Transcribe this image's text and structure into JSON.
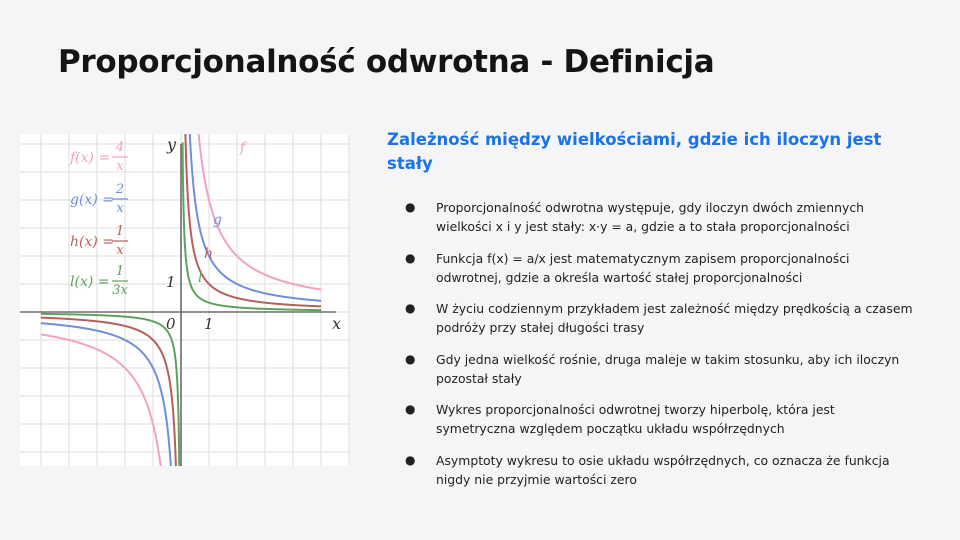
{
  "slide": {
    "title": "Proporcjonalność odwrotna - Definicja",
    "subtitle": "Zależność między wielkościami, gdzie ich iloczyn jest stały",
    "bullets": [
      "Proporcjonalność odwrotna występuje, gdy iloczyn dwóch zmiennych wielkości x i y jest stały: x·y = a, gdzie a to stała proporcjonalności",
      "Funkcja f(x) = a/x jest matematycznym zapisem proporcjonalności odwrotnej, gdzie a określa wartość stałej proporcjonalności",
      "W życiu codziennym przykładem jest zależność między prędkością a czasem podróży przy stałej długości trasy",
      "Gdy jedna wielkość rośnie, druga maleje w takim stosunku, aby ich iloczyn pozostał stały",
      "Wykres proporcjonalności odwrotnej tworzy hiperbolę, która jest symetryczna względem początku układu współrzędnych",
      "Asymptoty wykresu to osie układu współrzędnych, co oznacza że funkcja nigdy nie przyjmie wartości zero"
    ],
    "bullet_marker": "●",
    "colors": {
      "subtitle": "#1a73e8",
      "background": "#f5f5f7"
    }
  },
  "chart_data": {
    "type": "line",
    "xlabel": "x",
    "ylabel": "y",
    "origin_label": "0",
    "tick_labels": {
      "x": "1",
      "y": "1"
    },
    "xlim": [
      -4.5,
      4.5
    ],
    "ylim": [
      -4.5,
      4.5
    ],
    "grid": true,
    "series": [
      {
        "name": "f",
        "a": 4,
        "formula": "f(x) = 4/x",
        "fn": "f(x) =",
        "num": "4",
        "den": "x",
        "color": "#f2a2c0"
      },
      {
        "name": "g",
        "a": 2,
        "formula": "g(x) = 2/x",
        "fn": "g(x) =",
        "num": "2",
        "den": "x",
        "color": "#6f8fdc"
      },
      {
        "name": "h",
        "a": 1,
        "formula": "h(x) = 1/x",
        "fn": "h(x) =",
        "num": "1",
        "den": "x",
        "color": "#b5605a"
      },
      {
        "name": "l",
        "a": 0.3333,
        "formula": "l(x) = 1/(3x)",
        "fn": "l(x) =",
        "num": "1",
        "den": "3x",
        "color": "#5da35d"
      }
    ]
  }
}
